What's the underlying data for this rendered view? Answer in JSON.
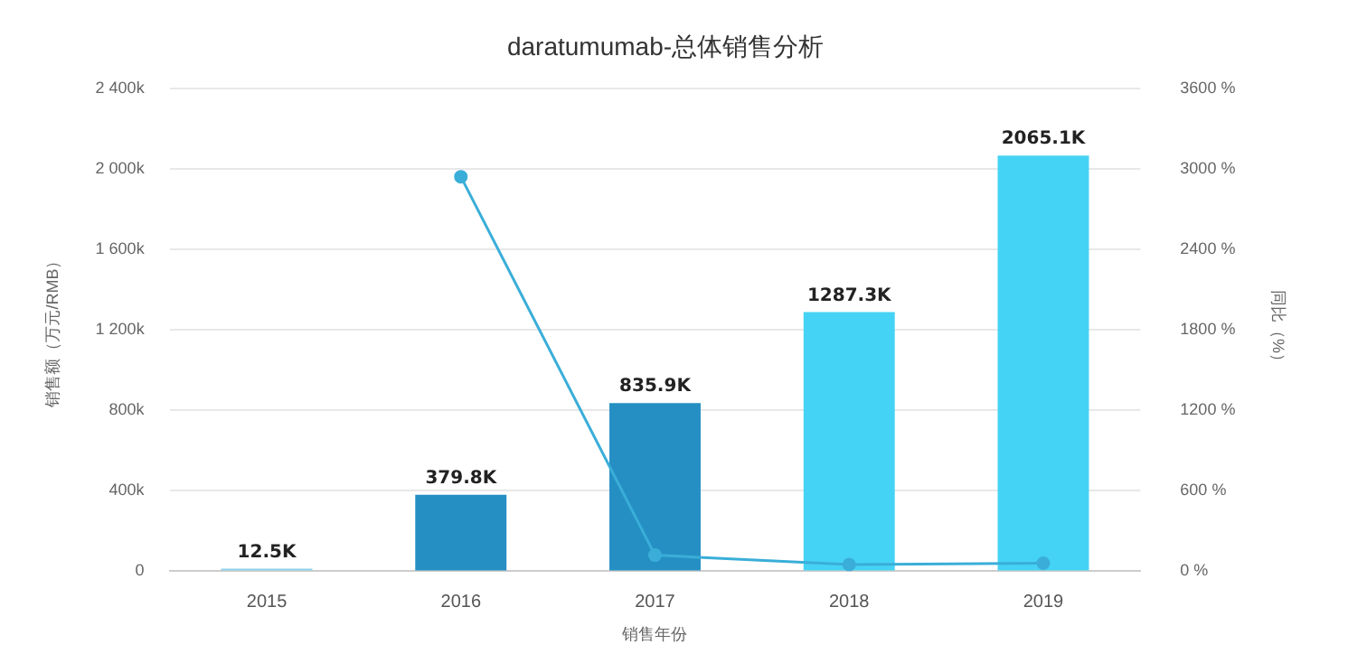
{
  "chart_data": {
    "type": "bar",
    "title": "daratumumab-总体销售分析",
    "xlabel": "销售年份",
    "ylabel": "销售额（万元/RMB）",
    "y2label": "同比（%）",
    "categories": [
      "2015",
      "2016",
      "2017",
      "2018",
      "2019"
    ],
    "series": [
      {
        "colors": [
          "#8fd3ee",
          "#258fc4",
          "#258fc4",
          "#45d3f5",
          "#45d3f5"
        ],
        "values": [
          12500,
          379800,
          835900,
          1287300,
          2065100
        ],
        "value_labels": [
          "12.5K",
          "379.8K",
          "835.9K",
          "1287.3K",
          "2065.1K"
        ]
      },
      {
        "type": "line",
        "axis": "y2",
        "color": "#3aaed8",
        "values": [
          null,
          2940,
          120,
          50,
          60
        ]
      }
    ],
    "ylim": [
      0,
      2400000
    ],
    "yticks": [
      0,
      {
        "value": 400000,
        "label": "400k"
      },
      {
        "value": 800000,
        "label": "800k"
      },
      {
        "value": 1200000,
        "label": "1 200k"
      },
      {
        "value": 1600000,
        "label": "1 600k"
      },
      {
        "value": 2000000,
        "label": "2 000k"
      },
      {
        "value": 2400000,
        "label": "2 400k"
      }
    ],
    "y2lim": [
      0,
      3600
    ],
    "y2ticks": [
      {
        "value": 0,
        "label": "0 %"
      },
      {
        "value": 600,
        "label": "600 %"
      },
      {
        "value": 1200,
        "label": "1200 %"
      },
      {
        "value": 1800,
        "label": "1800 %"
      },
      {
        "value": 2400,
        "label": "2400 %"
      },
      {
        "value": 3000,
        "label": "3000 %"
      },
      {
        "value": 3600,
        "label": "3600 %"
      }
    ],
    "grid": "y",
    "marker": "circle",
    "legend": false
  }
}
